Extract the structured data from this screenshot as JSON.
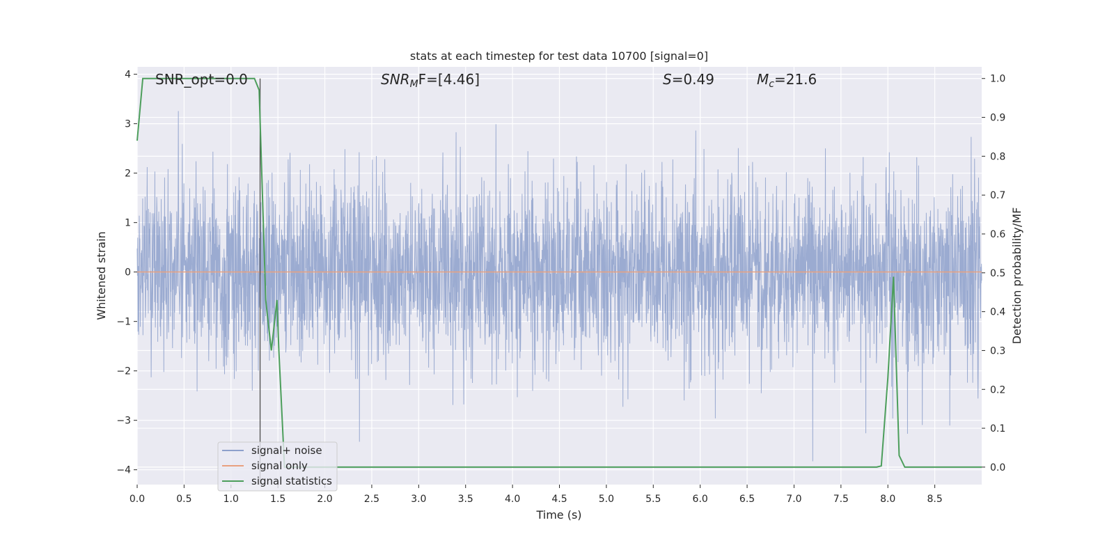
{
  "chart_data": {
    "type": "line",
    "title": "stats at each timestep for test data 10700 [signal=0]",
    "xlabel": "Time (s)",
    "ylabel_left": "Whitened strain",
    "ylabel_right": "Detection probability/MF",
    "xlim": [
      0.0,
      9.0
    ],
    "ylim_left": [
      -4.3,
      4.15
    ],
    "ylim_right": [
      -0.045,
      1.03
    ],
    "x_ticks": [
      "0.0",
      "0.5",
      "1.0",
      "1.5",
      "2.0",
      "2.5",
      "3.0",
      "3.5",
      "4.0",
      "4.5",
      "5.0",
      "5.5",
      "6.0",
      "6.5",
      "7.0",
      "7.5",
      "8.0",
      "8.5"
    ],
    "y_ticks_left": [
      "4",
      "3",
      "2",
      "1",
      "0",
      "−1",
      "−2",
      "−3",
      "−4"
    ],
    "y_ticks_right": [
      "1.0",
      "0.9",
      "0.8",
      "0.7",
      "0.6",
      "0.5",
      "0.4",
      "0.3",
      "0.2",
      "0.1",
      "0.0"
    ],
    "grid": true,
    "legend_position": "lower-left",
    "vertical_marker_x": 1.31,
    "annotations": {
      "snr_opt": "SNR_opt=0.0",
      "snr_mf_main": "SNR",
      "snr_mf_sub": "M",
      "snr_mf_rest": "F=[4.46]",
      "s_sym": "S",
      "s_val": "=0.49",
      "mc_sym": "M",
      "mc_sub": "c",
      "mc_val": "=21.6"
    },
    "series": [
      {
        "name": "signal+ noise",
        "axis": "left",
        "color": "#8da0cb",
        "style": "dense noise, approx. amplitude ±1.7 typical, peaks up to ±3.9",
        "seed": 10700,
        "approx_std": 0.95
      },
      {
        "name": "signal only",
        "axis": "left",
        "color": "#e8a07f",
        "x": [
          0.0,
          9.0
        ],
        "y": [
          0.0,
          0.0
        ]
      },
      {
        "name": "signal statistics",
        "axis": "right",
        "color": "#4c9e5b",
        "x": [
          0.0,
          0.06,
          0.12,
          0.18,
          0.25,
          0.5,
          1.0,
          1.25,
          1.3,
          1.37,
          1.43,
          1.49,
          1.51,
          1.57,
          1.63,
          2.0,
          4.0,
          6.0,
          7.88,
          7.93,
          8.0,
          8.06,
          8.12,
          8.18,
          8.5,
          9.0
        ],
        "y": [
          0.84,
          1.0,
          1.0,
          1.0,
          1.0,
          1.0,
          1.0,
          1.0,
          0.97,
          0.43,
          0.3,
          0.43,
          0.3,
          0.0,
          0.0,
          0.0,
          0.0,
          0.0,
          0.0,
          0.003,
          0.23,
          0.49,
          0.03,
          0.0,
          0.0,
          0.0
        ]
      }
    ]
  }
}
